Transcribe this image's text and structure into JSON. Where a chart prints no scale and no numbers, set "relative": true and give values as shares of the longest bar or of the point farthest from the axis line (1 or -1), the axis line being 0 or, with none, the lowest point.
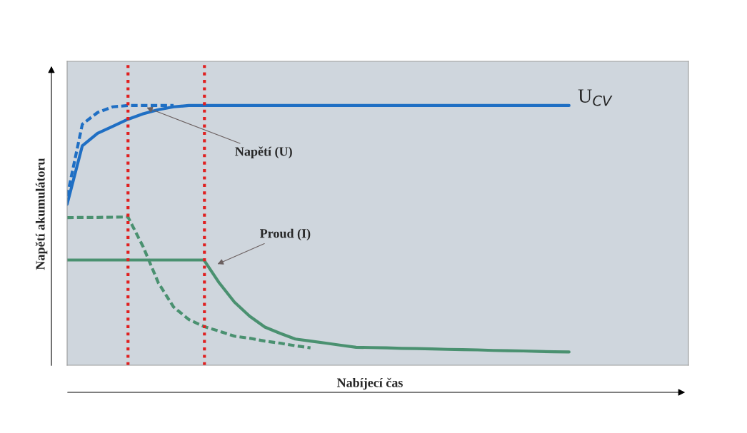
{
  "chart_data": {
    "type": "line",
    "relative": true,
    "xlabel": "Nabíjecí čas",
    "ylabel": "Napětí akumulátoru",
    "grid": false,
    "legend": false,
    "categories": [
      null,
      null,
      null,
      null,
      null,
      null,
      null,
      null,
      null,
      null,
      null,
      null,
      null,
      null,
      null,
      null,
      null,
      null,
      null,
      null,
      null,
      null,
      null,
      null,
      null,
      null,
      null,
      null,
      null,
      null,
      null,
      null,
      null,
      null,
      null,
      null,
      null,
      null,
      null,
      null,
      null
    ],
    "series": [
      {
        "color": "#1f6fc4",
        "line_style": "solid",
        "values": [
          0.62,
          0.845,
          0.893,
          0.92,
          0.947,
          0.968,
          0.984,
          0.995,
          1.0,
          1.0,
          1.0,
          1.0,
          1.0,
          1.0,
          1.0,
          1.0,
          1.0,
          1.0,
          1.0,
          1.0,
          1.0,
          1.0,
          1.0,
          1.0,
          1.0,
          1.0,
          1.0,
          1.0,
          1.0,
          1.0,
          1.0,
          1.0,
          1.0,
          1.0,
          null,
          null,
          null,
          null,
          null,
          null,
          null
        ]
      },
      {
        "color": "#1f6fc4",
        "line_style": "dashed",
        "values": [
          0.65,
          0.928,
          0.973,
          0.995,
          1.0,
          1.0,
          1.0,
          1.0,
          null,
          null,
          null,
          null,
          null,
          null,
          null,
          null,
          null,
          null,
          null,
          null,
          null,
          null,
          null,
          null,
          null,
          null,
          null,
          null,
          null,
          null,
          null,
          null,
          null,
          null,
          null,
          null,
          null,
          null,
          null,
          null,
          null
        ]
      },
      {
        "color": "#4a9170",
        "line_style": "solid",
        "values": [
          0.405,
          0.405,
          0.405,
          0.405,
          0.405,
          0.405,
          0.405,
          0.405,
          0.405,
          0.405,
          0.317,
          0.243,
          0.189,
          0.147,
          0.123,
          0.101,
          0.093,
          0.085,
          0.077,
          0.069,
          0.068,
          0.067,
          0.065,
          0.064,
          0.063,
          0.061,
          0.06,
          0.059,
          0.057,
          0.056,
          0.055,
          0.053,
          0.052,
          0.051,
          null,
          null,
          null,
          null,
          null,
          null,
          null
        ]
      },
      {
        "color": "#4a9170",
        "line_style": "dashed",
        "values": [
          0.568,
          0.569,
          0.569,
          0.57,
          0.571,
          0.456,
          0.317,
          0.224,
          0.176,
          0.149,
          0.131,
          0.112,
          0.104,
          0.093,
          0.085,
          0.075,
          0.067,
          null,
          null,
          null,
          null,
          null,
          null,
          null,
          null,
          null,
          null,
          null,
          null,
          null,
          null,
          null,
          null,
          null,
          null,
          null,
          null,
          null,
          null,
          null,
          null
        ]
      }
    ],
    "annotations": [
      "U$_{CV}$",
      "Napětí (U)",
      "Proud (I)"
    ]
  }
}
